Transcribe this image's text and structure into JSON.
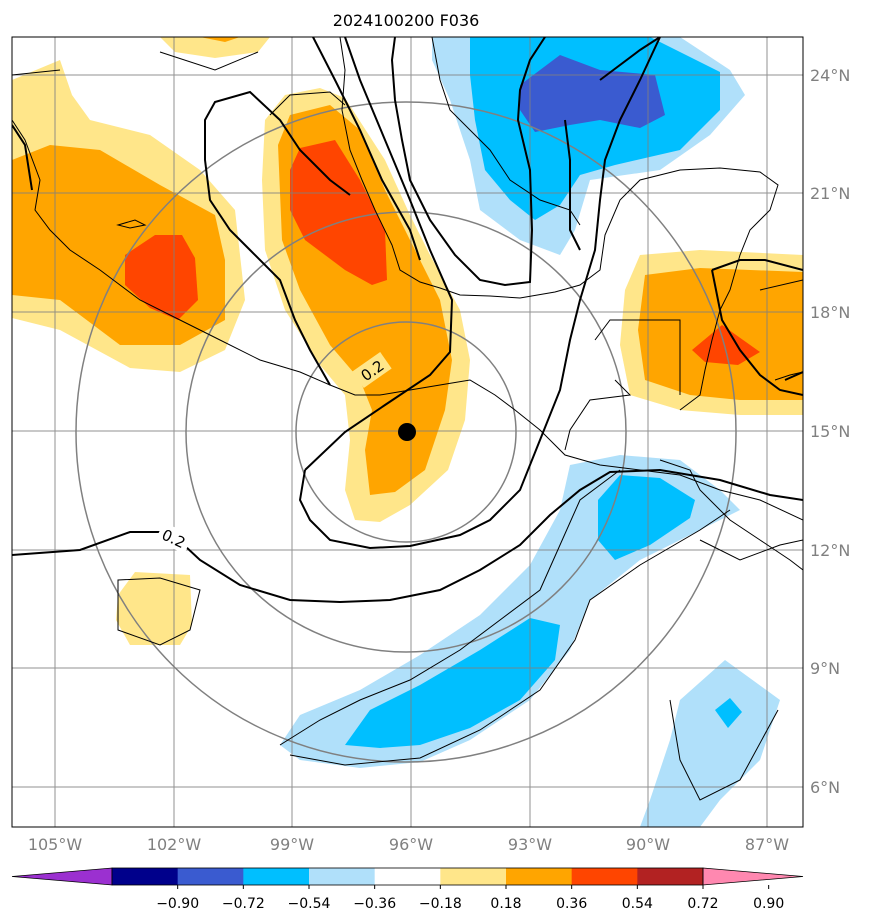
{
  "title": "2024100200 F036",
  "lat_labels": [
    "24°N",
    "21°N",
    "18°N",
    "15°N",
    "12°N",
    "9°N",
    "6°N"
  ],
  "lon_labels": [
    "105°W",
    "102°W",
    "99°W",
    "96°W",
    "93°W",
    "90°W",
    "87°W"
  ],
  "contour_labels": [
    "0.2",
    "0.2"
  ],
  "colorbar": {
    "ticks": [
      "−0.90",
      "−0.72",
      "−0.54",
      "−0.36",
      "−0.18",
      "0.18",
      "0.36",
      "0.54",
      "0.72",
      "0.90"
    ],
    "colors": [
      "#9b30d0",
      "#00008b",
      "#3a5bd0",
      "#00bfff",
      "#b0e0fa",
      "#ffffff",
      "#ffe68a",
      "#ffa500",
      "#ff4500",
      "#b22222",
      "#ff88b0"
    ]
  },
  "fill_colors": {
    "light_yellow": "#ffe68a",
    "orange": "#ffa500",
    "red_orange": "#ff4500",
    "light_blue": "#b0e0fa",
    "blue": "#00bfff",
    "royal_blue": "#3a5bd0"
  },
  "storm_marker": "black-dot"
}
